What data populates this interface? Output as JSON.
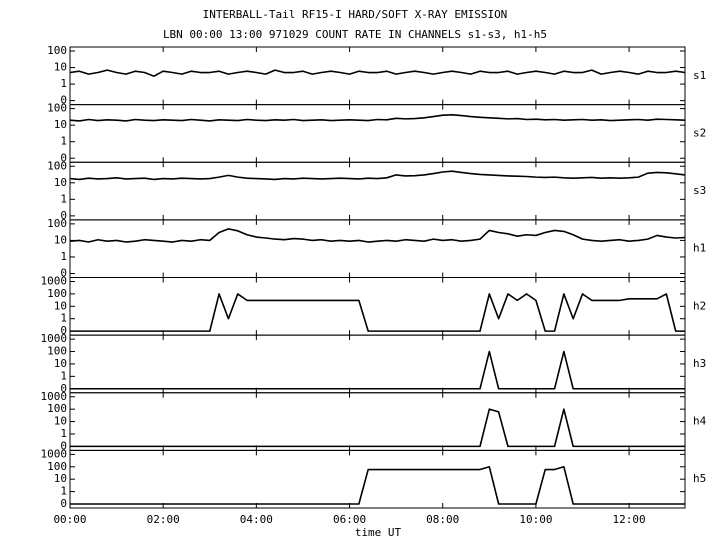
{
  "chart_data": {
    "type": "line",
    "title": "INTERBALL-Tail RF15-I HARD/SOFT X-RAY EMISSION",
    "subtitle": "LBN 00:00 13:00 971029  COUNT RATE IN CHANNELS s1-s3, h1-h5",
    "xlabel": "time UT",
    "log": true,
    "xlim": [
      0,
      13.2
    ],
    "xticks": [
      {
        "value": 0,
        "label": "00:00"
      },
      {
        "value": 2,
        "label": "02:00"
      },
      {
        "value": 4,
        "label": "04:00"
      },
      {
        "value": 6,
        "label": "06:00"
      },
      {
        "value": 8,
        "label": "08:00"
      },
      {
        "value": 10,
        "label": "10:00"
      },
      {
        "value": 12,
        "label": "12:00"
      }
    ],
    "x": [
      0,
      0.2,
      0.4,
      0.6,
      0.8,
      1,
      1.2,
      1.4,
      1.6,
      1.8,
      2,
      2.2,
      2.4,
      2.6,
      2.8,
      3,
      3.2,
      3.4,
      3.6,
      3.8,
      4,
      4.2,
      4.4,
      4.6,
      4.8,
      5,
      5.2,
      5.4,
      5.6,
      5.8,
      6,
      6.2,
      6.4,
      6.6,
      6.8,
      7,
      7.2,
      7.4,
      7.6,
      7.8,
      8,
      8.2,
      8.4,
      8.6,
      8.8,
      9,
      9.2,
      9.4,
      9.6,
      9.8,
      10,
      10.2,
      10.4,
      10.6,
      10.8,
      11,
      11.2,
      11.4,
      11.6,
      11.8,
      12,
      12.2,
      12.4,
      12.6,
      12.8,
      13,
      13.2
    ],
    "series": [
      {
        "name": "s1",
        "color": "#000000",
        "ylim": [
          0,
          100
        ],
        "yticks": [
          0,
          1,
          10,
          100
        ],
        "values": [
          5,
          6,
          4,
          5,
          7,
          5,
          4,
          6,
          5,
          3,
          6,
          5,
          4,
          6,
          5,
          5,
          6,
          4,
          5,
          6,
          5,
          4,
          7,
          5,
          5,
          6,
          4,
          5,
          6,
          5,
          4,
          6,
          5,
          5,
          6,
          4,
          5,
          6,
          5,
          4,
          5,
          6,
          5,
          4,
          6,
          5,
          5,
          6,
          4,
          5,
          6,
          5,
          4,
          6,
          5,
          5,
          7,
          4,
          5,
          6,
          5,
          4,
          6,
          5,
          5,
          6,
          5
        ]
      },
      {
        "name": "s2",
        "color": "#000000",
        "ylim": [
          0,
          100
        ],
        "yticks": [
          0,
          1,
          10,
          100
        ],
        "values": [
          20,
          18,
          22,
          19,
          21,
          20,
          18,
          22,
          20,
          19,
          21,
          20,
          19,
          22,
          20,
          18,
          21,
          20,
          19,
          22,
          20,
          19,
          21,
          20,
          22,
          19,
          20,
          21,
          19,
          20,
          21,
          20,
          19,
          22,
          21,
          26,
          24,
          25,
          28,
          33,
          40,
          42,
          38,
          33,
          30,
          28,
          26,
          24,
          25,
          22,
          23,
          21,
          22,
          20,
          21,
          22,
          20,
          21,
          19,
          20,
          21,
          22,
          20,
          23,
          22,
          21,
          20
        ]
      },
      {
        "name": "s3",
        "color": "#000000",
        "ylim": [
          0,
          100
        ],
        "yticks": [
          0,
          1,
          10,
          100
        ],
        "values": [
          18,
          16,
          19,
          17,
          18,
          20,
          17,
          18,
          19,
          16,
          18,
          17,
          19,
          18,
          17,
          18,
          22,
          28,
          22,
          19,
          18,
          17,
          16,
          18,
          17,
          19,
          18,
          17,
          18,
          19,
          18,
          17,
          19,
          18,
          20,
          30,
          26,
          27,
          30,
          36,
          45,
          50,
          42,
          36,
          32,
          30,
          28,
          26,
          25,
          24,
          22,
          21,
          22,
          20,
          19,
          20,
          21,
          19,
          20,
          19,
          20,
          22,
          38,
          42,
          40,
          35,
          30
        ]
      },
      {
        "name": "h1",
        "color": "#000000",
        "ylim": [
          0,
          100
        ],
        "yticks": [
          0,
          1,
          10,
          100
        ],
        "values": [
          9,
          10,
          8,
          11,
          9,
          10,
          8,
          9,
          11,
          10,
          9,
          8,
          10,
          9,
          11,
          10,
          30,
          50,
          38,
          22,
          16,
          14,
          12,
          11,
          13,
          12,
          10,
          11,
          9,
          10,
          9,
          10,
          8,
          9,
          10,
          9,
          11,
          10,
          9,
          12,
          10,
          11,
          9,
          10,
          12,
          40,
          30,
          25,
          18,
          22,
          20,
          30,
          40,
          35,
          22,
          12,
          10,
          9,
          10,
          11,
          9,
          10,
          12,
          20,
          16,
          14,
          15
        ]
      },
      {
        "name": "h2",
        "color": "#000000",
        "ylim": [
          0,
          1000
        ],
        "yticks": [
          0,
          1,
          10,
          100,
          1000
        ],
        "values": [
          0,
          0,
          0,
          0,
          0,
          0,
          0,
          0,
          0,
          0,
          0,
          0,
          0,
          0,
          0,
          0,
          100,
          1,
          100,
          30,
          30,
          30,
          30,
          30,
          30,
          30,
          30,
          30,
          30,
          30,
          30,
          30,
          0,
          0,
          0,
          0,
          0,
          0,
          0,
          0,
          0,
          0,
          0,
          0,
          0,
          100,
          1,
          100,
          30,
          100,
          30,
          0,
          0,
          100,
          1,
          100,
          30,
          30,
          30,
          30,
          40,
          40,
          40,
          40,
          100,
          0,
          0
        ]
      },
      {
        "name": "h3",
        "color": "#000000",
        "ylim": [
          0,
          1000
        ],
        "yticks": [
          0,
          1,
          10,
          100,
          1000
        ],
        "values": [
          0,
          0,
          0,
          0,
          0,
          0,
          0,
          0,
          0,
          0,
          0,
          0,
          0,
          0,
          0,
          0,
          0,
          0,
          0,
          0,
          0,
          0,
          0,
          0,
          0,
          0,
          0,
          0,
          0,
          0,
          0,
          0,
          0,
          0,
          0,
          0,
          0,
          0,
          0,
          0,
          0,
          0,
          0,
          0,
          0,
          100,
          0,
          0,
          0,
          0,
          0,
          0,
          0,
          100,
          0,
          0,
          0,
          0,
          0,
          0,
          0,
          0,
          0,
          0,
          0,
          0,
          0
        ]
      },
      {
        "name": "h4",
        "color": "#000000",
        "ylim": [
          0,
          1000
        ],
        "yticks": [
          0,
          1,
          10,
          100,
          1000
        ],
        "values": [
          0,
          0,
          0,
          0,
          0,
          0,
          0,
          0,
          0,
          0,
          0,
          0,
          0,
          0,
          0,
          0,
          0,
          0,
          0,
          0,
          0,
          0,
          0,
          0,
          0,
          0,
          0,
          0,
          0,
          0,
          0,
          0,
          0,
          0,
          0,
          0,
          0,
          0,
          0,
          0,
          0,
          0,
          0,
          0,
          0,
          100,
          60,
          0,
          0,
          0,
          0,
          0,
          0,
          100,
          0,
          0,
          0,
          0,
          0,
          0,
          0,
          0,
          0,
          0,
          0,
          0,
          0
        ]
      },
      {
        "name": "h5",
        "color": "#000000",
        "ylim": [
          0,
          1000
        ],
        "yticks": [
          0,
          1,
          10,
          100,
          1000
        ],
        "values": [
          0,
          0,
          0,
          0,
          0,
          0,
          0,
          0,
          0,
          0,
          0,
          0,
          0,
          0,
          0,
          0,
          0,
          0,
          0,
          0,
          0,
          0,
          0,
          0,
          0,
          0,
          0,
          0,
          0,
          0,
          0,
          0,
          60,
          60,
          60,
          60,
          60,
          60,
          60,
          60,
          60,
          60,
          60,
          60,
          60,
          100,
          0,
          0,
          0,
          0,
          0,
          60,
          60,
          100,
          0,
          0,
          0,
          0,
          0,
          0,
          0,
          0,
          0,
          0,
          0,
          0,
          0
        ]
      }
    ]
  }
}
